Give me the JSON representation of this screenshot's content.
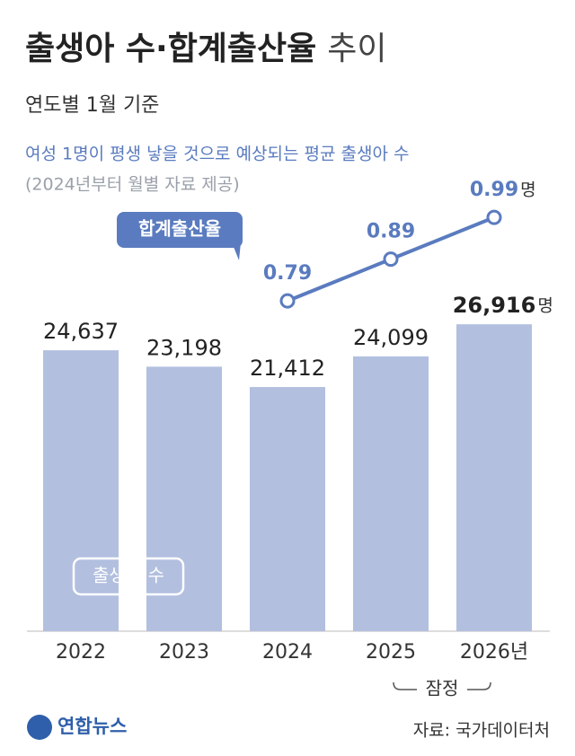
{
  "chart_data": {
    "type": "bar-line",
    "title": "출생아 수·합계출산율",
    "title_suffix": "추이",
    "subtitle": "연도별 1월 기준",
    "note": "여성 1명이 평생 낳을 것으로 예상되는 평균 출생아 수",
    "note_detail": "(2024년부터 월별 자료 제공)",
    "categories": [
      "2022",
      "2023",
      "2024",
      "2025",
      "2026년"
    ],
    "provisional_label": "잠정",
    "ylim": [
      0,
      30000
    ],
    "y2lim": [
      0.5,
      1.1
    ],
    "series": [
      {
        "name": "출생아 수",
        "type": "bar",
        "color": "#b2bfdf",
        "unit": "명",
        "values": [
          24637,
          23198,
          21412,
          24099,
          26916
        ],
        "value_labels": [
          "24,637",
          "23,198",
          "21,412",
          "24,099",
          "26,916"
        ]
      },
      {
        "name": "합계출산율",
        "type": "line",
        "axis": "y2",
        "color": "#5a7bbf",
        "unit": "명",
        "values": [
          null,
          null,
          0.79,
          0.89,
          0.99
        ]
      }
    ],
    "source": "자료: 국가데이터처",
    "logo": "연합뉴스"
  }
}
